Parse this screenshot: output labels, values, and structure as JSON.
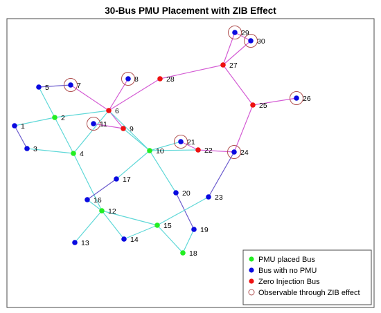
{
  "title": "30-Bus PMU Placement with ZIB Effect",
  "colors": {
    "pmu": "#22ee22",
    "nopmu": "#0a0ae0",
    "zib": "#ee1111",
    "ring": "#b05050",
    "edge_cyan": "#5fd8d8",
    "edge_magenta": "#d45cd4",
    "edge_purple": "#6a5acd"
  },
  "legend": {
    "pmu": "PMU placed Bus",
    "nopmu": "Bus with no PMU",
    "zib": "Zero Injection Bus",
    "observable": "Observable through ZIB effect"
  },
  "nodes": [
    {
      "id": "1",
      "type": "nopmu",
      "ring": false
    },
    {
      "id": "2",
      "type": "pmu",
      "ring": false
    },
    {
      "id": "3",
      "type": "nopmu",
      "ring": false
    },
    {
      "id": "4",
      "type": "pmu",
      "ring": false
    },
    {
      "id": "5",
      "type": "nopmu",
      "ring": false
    },
    {
      "id": "6",
      "type": "zib",
      "ring": false
    },
    {
      "id": "7",
      "type": "nopmu",
      "ring": true
    },
    {
      "id": "8",
      "type": "nopmu",
      "ring": true
    },
    {
      "id": "9",
      "type": "zib",
      "ring": false
    },
    {
      "id": "10",
      "type": "pmu",
      "ring": false
    },
    {
      "id": "11",
      "type": "nopmu",
      "ring": true
    },
    {
      "id": "12",
      "type": "pmu",
      "ring": false
    },
    {
      "id": "13",
      "type": "nopmu",
      "ring": false
    },
    {
      "id": "14",
      "type": "nopmu",
      "ring": false
    },
    {
      "id": "15",
      "type": "pmu",
      "ring": false
    },
    {
      "id": "16",
      "type": "nopmu",
      "ring": false
    },
    {
      "id": "17",
      "type": "nopmu",
      "ring": false
    },
    {
      "id": "18",
      "type": "pmu",
      "ring": false
    },
    {
      "id": "19",
      "type": "nopmu",
      "ring": false
    },
    {
      "id": "20",
      "type": "nopmu",
      "ring": false
    },
    {
      "id": "21",
      "type": "nopmu",
      "ring": true
    },
    {
      "id": "22",
      "type": "zib",
      "ring": false
    },
    {
      "id": "23",
      "type": "nopmu",
      "ring": false
    },
    {
      "id": "24",
      "type": "nopmu",
      "ring": true
    },
    {
      "id": "25",
      "type": "zib",
      "ring": false
    },
    {
      "id": "26",
      "type": "nopmu",
      "ring": true
    },
    {
      "id": "27",
      "type": "zib",
      "ring": false
    },
    {
      "id": "28",
      "type": "zib",
      "ring": false
    },
    {
      "id": "29",
      "type": "nopmu",
      "ring": true
    },
    {
      "id": "30",
      "type": "nopmu",
      "ring": true
    }
  ],
  "edges": [
    {
      "from": "1",
      "to": "2",
      "color": "edge_cyan"
    },
    {
      "from": "1",
      "to": "3",
      "color": "edge_purple"
    },
    {
      "from": "3",
      "to": "4",
      "color": "edge_cyan"
    },
    {
      "from": "2",
      "to": "4",
      "color": "edge_cyan"
    },
    {
      "from": "2",
      "to": "5",
      "color": "edge_cyan"
    },
    {
      "from": "2",
      "to": "6",
      "color": "edge_cyan"
    },
    {
      "from": "4",
      "to": "6",
      "color": "edge_cyan"
    },
    {
      "from": "5",
      "to": "7",
      "color": "edge_purple"
    },
    {
      "from": "6",
      "to": "7",
      "color": "edge_magenta"
    },
    {
      "from": "6",
      "to": "8",
      "color": "edge_magenta"
    },
    {
      "from": "6",
      "to": "9",
      "color": "edge_magenta"
    },
    {
      "from": "6",
      "to": "10",
      "color": "edge_cyan"
    },
    {
      "from": "6",
      "to": "28",
      "color": "edge_magenta"
    },
    {
      "from": "9",
      "to": "11",
      "color": "edge_magenta"
    },
    {
      "from": "9",
      "to": "10",
      "color": "edge_cyan"
    },
    {
      "from": "4",
      "to": "12",
      "color": "edge_cyan"
    },
    {
      "from": "12",
      "to": "13",
      "color": "edge_cyan"
    },
    {
      "from": "12",
      "to": "14",
      "color": "edge_cyan"
    },
    {
      "from": "12",
      "to": "15",
      "color": "edge_cyan"
    },
    {
      "from": "12",
      "to": "16",
      "color": "edge_cyan"
    },
    {
      "from": "14",
      "to": "15",
      "color": "edge_cyan"
    },
    {
      "from": "16",
      "to": "17",
      "color": "edge_purple"
    },
    {
      "from": "15",
      "to": "18",
      "color": "edge_cyan"
    },
    {
      "from": "18",
      "to": "19",
      "color": "edge_cyan"
    },
    {
      "from": "19",
      "to": "20",
      "color": "edge_purple"
    },
    {
      "from": "10",
      "to": "20",
      "color": "edge_cyan"
    },
    {
      "from": "10",
      "to": "17",
      "color": "edge_cyan"
    },
    {
      "from": "10",
      "to": "21",
      "color": "edge_cyan"
    },
    {
      "from": "10",
      "to": "22",
      "color": "edge_cyan"
    },
    {
      "from": "21",
      "to": "22",
      "color": "edge_magenta"
    },
    {
      "from": "15",
      "to": "23",
      "color": "edge_cyan"
    },
    {
      "from": "22",
      "to": "24",
      "color": "edge_magenta"
    },
    {
      "from": "23",
      "to": "24",
      "color": "edge_purple"
    },
    {
      "from": "24",
      "to": "25",
      "color": "edge_magenta"
    },
    {
      "from": "25",
      "to": "26",
      "color": "edge_magenta"
    },
    {
      "from": "25",
      "to": "27",
      "color": "edge_magenta"
    },
    {
      "from": "28",
      "to": "27",
      "color": "edge_magenta"
    },
    {
      "from": "27",
      "to": "29",
      "color": "edge_magenta"
    },
    {
      "from": "27",
      "to": "30",
      "color": "edge_magenta"
    },
    {
      "from": "29",
      "to": "30",
      "color": "edge_magenta"
    }
  ]
}
